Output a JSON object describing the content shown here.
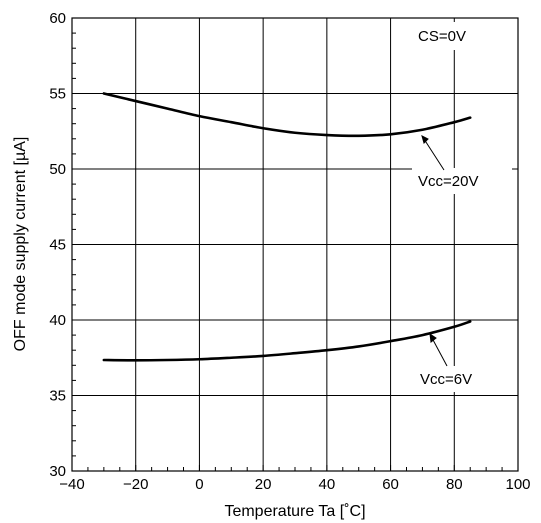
{
  "chart_data": {
    "type": "line",
    "title": "",
    "xlabel": "Temperature Ta [˚C]",
    "ylabel": "OFF mode supply current [µA]",
    "xlim": [
      -40,
      100
    ],
    "ylim": [
      30,
      60
    ],
    "x_ticks": [
      -40,
      -20,
      0,
      20,
      40,
      60,
      80,
      100
    ],
    "y_ticks": [
      30,
      35,
      40,
      45,
      50,
      55,
      60
    ],
    "x_tick_labels": [
      "−40",
      "−20",
      "0",
      "20",
      "40",
      "60",
      "80",
      "100"
    ],
    "y_tick_labels": [
      "30",
      "35",
      "40",
      "45",
      "50",
      "55",
      "60"
    ],
    "grid": true,
    "series": [
      {
        "name": "Vcc=20V",
        "x": [
          -30,
          -20,
          -10,
          0,
          10,
          20,
          30,
          40,
          50,
          60,
          70,
          80,
          85
        ],
        "y": [
          55.0,
          54.5,
          54.0,
          53.5,
          53.1,
          52.7,
          52.4,
          52.25,
          52.2,
          52.3,
          52.6,
          53.1,
          53.4
        ]
      },
      {
        "name": "Vcc=6V",
        "x": [
          -30,
          -20,
          -10,
          0,
          10,
          20,
          30,
          40,
          50,
          60,
          70,
          80,
          85
        ],
        "y": [
          37.35,
          37.33,
          37.35,
          37.4,
          37.5,
          37.62,
          37.8,
          38.0,
          38.25,
          38.6,
          39.0,
          39.55,
          39.9
        ]
      }
    ],
    "annotations": [
      {
        "text": "CS=0V"
      },
      {
        "text": "Vcc=20V",
        "points_to": "Vcc=20V"
      },
      {
        "text": "Vcc=6V",
        "points_to": "Vcc=6V"
      }
    ]
  }
}
